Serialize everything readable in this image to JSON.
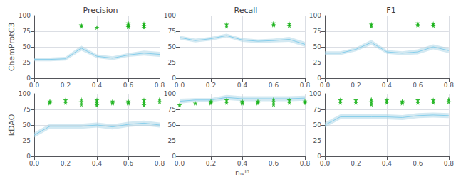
{
  "chart_data": [
    {
      "type": "line",
      "title": "Precision",
      "ylabel": "ChemProtC3",
      "x": [
        0.0,
        0.1,
        0.2,
        0.3,
        0.4,
        0.5,
        0.6,
        0.7,
        0.8
      ],
      "xlim": [
        0.0,
        0.8
      ],
      "xticks": [
        {
          "value": 0.0,
          "label": "0.0"
        },
        0.2,
        0.4,
        0.6,
        0.8
      ],
      "ylim": [
        0,
        100
      ],
      "yticks": [
        0,
        25,
        50,
        75,
        100
      ],
      "grid": true,
      "series": [
        {
          "type": "band",
          "color": "#a8d4e6",
          "lower": [
            27,
            27,
            28,
            44,
            32,
            29,
            34,
            36,
            34
          ],
          "upper": [
            33,
            33,
            34,
            52,
            38,
            35,
            40,
            44,
            42
          ]
        },
        {
          "type": "line",
          "color": "#87ceeb",
          "values": [
            30,
            30,
            31,
            48,
            35,
            32,
            37,
            40,
            38
          ]
        },
        {
          "type": "scatter",
          "color": "#00aa00",
          "marker": "star",
          "x": [
            0.3,
            0.3,
            0.4,
            0.6,
            0.6,
            0.6,
            0.7,
            0.7,
            0.7
          ],
          "values": [
            85,
            83,
            81,
            88,
            85,
            82,
            87,
            84,
            81
          ]
        }
      ]
    },
    {
      "type": "line",
      "title": "Recall",
      "x": [
        0.0,
        0.1,
        0.2,
        0.3,
        0.4,
        0.5,
        0.6,
        0.7,
        0.8
      ],
      "xlim": [
        0.0,
        0.8
      ],
      "xticks": [
        {
          "value": 0.0,
          "label": "0.0"
        },
        0.2,
        0.4,
        0.6,
        0.8
      ],
      "ylim": [
        0,
        100
      ],
      "yticks": [
        0,
        25,
        50,
        75,
        100
      ],
      "grid": true,
      "series": [
        {
          "type": "band",
          "color": "#a8d4e6",
          "lower": [
            62,
            57,
            60,
            65,
            58,
            56,
            57,
            58,
            50
          ],
          "upper": [
            68,
            63,
            66,
            71,
            64,
            62,
            63,
            66,
            58
          ]
        },
        {
          "type": "line",
          "color": "#87ceeb",
          "values": [
            65,
            60,
            63,
            68,
            61,
            59,
            60,
            62,
            54
          ]
        },
        {
          "type": "scatter",
          "color": "#00aa00",
          "marker": "star",
          "x": [
            0.3,
            0.3,
            0.6,
            0.6,
            0.7,
            0.7
          ],
          "values": [
            86,
            83,
            88,
            85,
            87,
            84
          ]
        }
      ]
    },
    {
      "type": "line",
      "title": "F1",
      "x": [
        0.0,
        0.1,
        0.2,
        0.3,
        0.4,
        0.5,
        0.6,
        0.7,
        0.8
      ],
      "xlim": [
        0.0,
        0.8
      ],
      "xticks": [
        {
          "value": 0.0,
          "label": "0.0"
        },
        0.2,
        0.4,
        0.6,
        0.8
      ],
      "ylim": [
        0,
        100
      ],
      "yticks": [
        0,
        25,
        50,
        75,
        100
      ],
      "grid": true,
      "series": [
        {
          "type": "band",
          "color": "#a8d4e6",
          "lower": [
            37,
            37,
            43,
            53,
            39,
            37,
            38,
            46,
            40
          ],
          "upper": [
            43,
            43,
            49,
            61,
            45,
            43,
            46,
            54,
            48
          ]
        },
        {
          "type": "line",
          "color": "#87ceeb",
          "values": [
            40,
            40,
            46,
            57,
            42,
            40,
            42,
            50,
            44
          ]
        },
        {
          "type": "scatter",
          "color": "#00aa00",
          "marker": "star",
          "x": [
            0.3,
            0.3,
            0.6,
            0.6,
            0.7,
            0.7
          ],
          "values": [
            86,
            83,
            88,
            85,
            87,
            84
          ]
        }
      ]
    },
    {
      "type": "line",
      "ylabel": "kDAO",
      "x": [
        0.0,
        0.1,
        0.2,
        0.3,
        0.4,
        0.5,
        0.6,
        0.7,
        0.8
      ],
      "xlim": [
        0.0,
        0.8
      ],
      "xticks": [
        {
          "value": 0.0,
          "label": "0.0"
        },
        0.2,
        0.4,
        0.6,
        0.8
      ],
      "ylim": [
        0,
        100
      ],
      "yticks": [
        0,
        25,
        50,
        75,
        100
      ],
      "grid": true,
      "series": [
        {
          "type": "band",
          "color": "#a8d4e6",
          "lower": [
            30,
            44,
            44,
            44,
            46,
            43,
            47,
            49,
            46
          ],
          "upper": [
            38,
            52,
            52,
            52,
            54,
            51,
            55,
            57,
            54
          ]
        },
        {
          "type": "line",
          "color": "#87ceeb",
          "values": [
            34,
            48,
            48,
            48,
            50,
            47,
            51,
            53,
            50
          ]
        },
        {
          "type": "scatter",
          "color": "#00aa00",
          "marker": "star",
          "x": [
            0.1,
            0.1,
            0.2,
            0.2,
            0.3,
            0.3,
            0.3,
            0.4,
            0.4,
            0.4,
            0.5,
            0.5,
            0.6,
            0.6,
            0.7,
            0.7,
            0.7,
            0.8,
            0.8
          ],
          "values": [
            88,
            85,
            90,
            86,
            91,
            87,
            83,
            90,
            86,
            82,
            88,
            85,
            88,
            85,
            90,
            86,
            82,
            91,
            87
          ]
        }
      ]
    },
    {
      "type": "line",
      "xlabel": "rₕᵥⁱⁿ",
      "x": [
        0.0,
        0.1,
        0.2,
        0.3,
        0.4,
        0.5,
        0.6,
        0.7,
        0.8
      ],
      "xlim": [
        0.0,
        0.8
      ],
      "xticks": [
        {
          "value": 0.0,
          "label": "0.0"
        },
        0.2,
        0.4,
        0.6,
        0.8
      ],
      "ylim": [
        0,
        100
      ],
      "yticks": [
        0,
        25,
        50,
        75,
        100
      ],
      "grid": true,
      "series": [
        {
          "type": "band",
          "color": "#a8d4e6",
          "lower": [
            84,
            87,
            87,
            90,
            88,
            88,
            88,
            88,
            89
          ],
          "upper": [
            92,
            93,
            93,
            98,
            96,
            96,
            96,
            96,
            97
          ]
        },
        {
          "type": "line",
          "color": "#87ceeb",
          "values": [
            88,
            90,
            90,
            94,
            92,
            92,
            92,
            92,
            93
          ]
        },
        {
          "type": "scatter",
          "color": "#00aa00",
          "marker": "star",
          "x": [
            0.0,
            0.1,
            0.2,
            0.2,
            0.3,
            0.3,
            0.4,
            0.4,
            0.5,
            0.5,
            0.6,
            0.6,
            0.6,
            0.7,
            0.7,
            0.8,
            0.8
          ],
          "values": [
            82,
            85,
            88,
            85,
            90,
            86,
            88,
            85,
            88,
            85,
            91,
            87,
            83,
            90,
            86,
            88,
            85
          ]
        }
      ]
    },
    {
      "type": "line",
      "x": [
        0.0,
        0.1,
        0.2,
        0.3,
        0.4,
        0.5,
        0.6,
        0.7,
        0.8
      ],
      "xlim": [
        0.0,
        0.8
      ],
      "xticks": [
        {
          "value": 0.0,
          "label": "0.0"
        },
        0.2,
        0.4,
        0.6,
        0.8
      ],
      "ylim": [
        0,
        100
      ],
      "yticks": [
        0,
        25,
        50,
        75,
        100
      ],
      "grid": true,
      "series": [
        {
          "type": "band",
          "color": "#a8d4e6",
          "lower": [
            46,
            59,
            59,
            59,
            59,
            58,
            61,
            62,
            61
          ],
          "upper": [
            54,
            67,
            67,
            67,
            67,
            66,
            69,
            70,
            69
          ]
        },
        {
          "type": "line",
          "color": "#87ceeb",
          "values": [
            50,
            63,
            63,
            63,
            63,
            62,
            65,
            66,
            65
          ]
        },
        {
          "type": "scatter",
          "color": "#00aa00",
          "marker": "star",
          "x": [
            0.1,
            0.1,
            0.2,
            0.2,
            0.3,
            0.3,
            0.3,
            0.4,
            0.4,
            0.5,
            0.5,
            0.6,
            0.6,
            0.7,
            0.7,
            0.8,
            0.8
          ],
          "values": [
            90,
            86,
            90,
            86,
            91,
            87,
            83,
            90,
            86,
            88,
            85,
            90,
            86,
            90,
            86,
            91,
            87
          ]
        }
      ]
    }
  ]
}
